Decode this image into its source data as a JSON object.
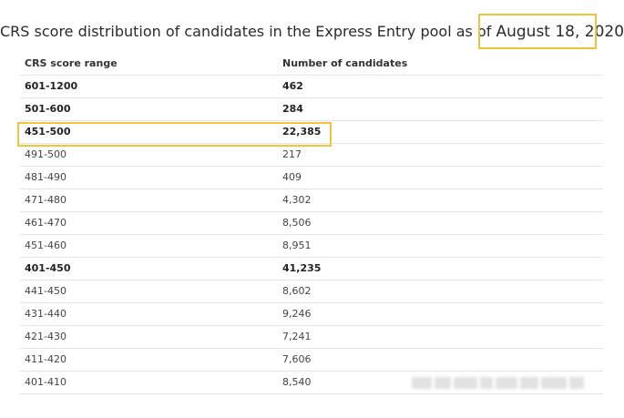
{
  "header": {
    "title_prefix": "CRS score distribution of candidates in the Express Entry pool as of ",
    "title_date": "August 18, 2020"
  },
  "table": {
    "columns": [
      "CRS score range",
      "Number of candidates"
    ],
    "rows": [
      {
        "range": "601-1200",
        "count": "462",
        "style": "bold"
      },
      {
        "range": "501-600",
        "count": "284",
        "style": "bold"
      },
      {
        "range": "451-500",
        "count": "22,385",
        "style": "bold"
      },
      {
        "range": "491-500",
        "count": "217",
        "style": "normal"
      },
      {
        "range": "481-490",
        "count": "409",
        "style": "normal"
      },
      {
        "range": "471-480",
        "count": "4,302",
        "style": "normal"
      },
      {
        "range": "461-470",
        "count": "8,506",
        "style": "normal"
      },
      {
        "range": "451-460",
        "count": "8,951",
        "style": "normal"
      },
      {
        "range": "401-450",
        "count": "41,235",
        "style": "bold"
      },
      {
        "range": "441-450",
        "count": "8,602",
        "style": "normal"
      },
      {
        "range": "431-440",
        "count": "9,246",
        "style": "normal"
      },
      {
        "range": "421-430",
        "count": "7,241",
        "style": "normal"
      },
      {
        "range": "411-420",
        "count": "7,606",
        "style": "normal"
      },
      {
        "range": "401-410",
        "count": "8,540",
        "style": "normal"
      }
    ]
  },
  "highlight": {
    "color": "#f3c13a"
  }
}
